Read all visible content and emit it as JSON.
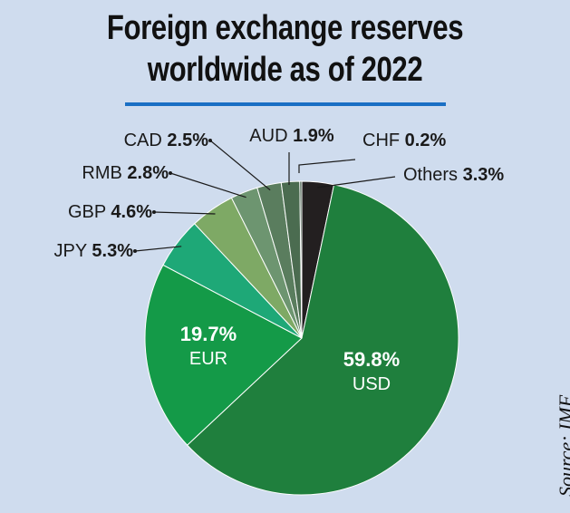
{
  "title_lines": [
    "Foreign exchange reserves",
    "worldwide as of 2022"
  ],
  "source": "Source: IMF",
  "colors": {
    "background": "#cfdcee",
    "rule": "#1a6fc4"
  },
  "chart_data": {
    "type": "pie",
    "title": "Foreign exchange reserves worldwide as of 2022",
    "unit": "%",
    "slices": [
      {
        "label": "Others",
        "value": 3.3,
        "display": "3.3%",
        "color": "#231f20"
      },
      {
        "label": "USD",
        "value": 59.8,
        "display": "59.8%",
        "color": "#1f7f3d"
      },
      {
        "label": "EUR",
        "value": 19.7,
        "display": "19.7%",
        "color": "#149a48"
      },
      {
        "label": "JPY",
        "value": 5.3,
        "display": "5.3%",
        "color": "#1ea877"
      },
      {
        "label": "GBP",
        "value": 4.6,
        "display": "4.6%",
        "color": "#7ea965"
      },
      {
        "label": "RMB",
        "value": 2.8,
        "display": "2.8%",
        "color": "#6d9570"
      },
      {
        "label": "CAD",
        "value": 2.5,
        "display": "2.5%",
        "color": "#5a7d5e"
      },
      {
        "label": "AUD",
        "value": 1.9,
        "display": "1.9%",
        "color": "#4b6c50"
      },
      {
        "label": "CHF",
        "value": 0.2,
        "display": "0.2%",
        "color": "#2f4a35"
      }
    ]
  }
}
